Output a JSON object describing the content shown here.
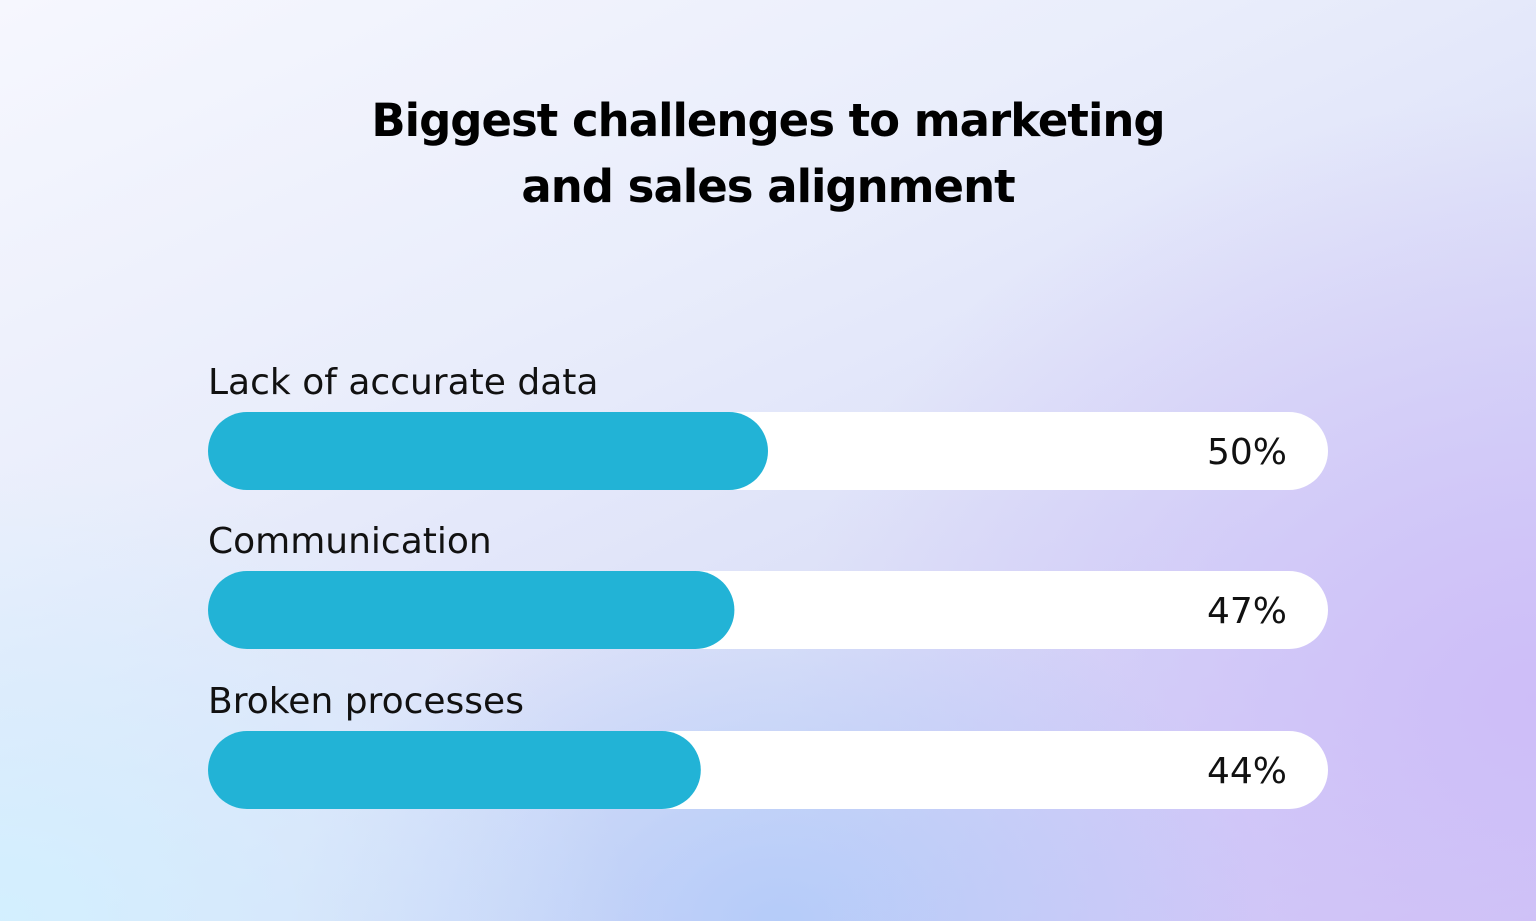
{
  "chart_data": {
    "type": "bar",
    "orientation": "horizontal",
    "title_lines": [
      "Biggest challenges to marketing",
      "and sales alignment"
    ],
    "categories": [
      "Lack of accurate data",
      "Communication",
      "Broken processes"
    ],
    "values": [
      50,
      47,
      44
    ],
    "value_labels": [
      "50%",
      "47%",
      "44%"
    ],
    "xlim": [
      0,
      100
    ],
    "grid": false,
    "legend": "none",
    "colors": {
      "bar": "#22b3d6",
      "track": "#ffffff",
      "text": "#111111"
    }
  }
}
